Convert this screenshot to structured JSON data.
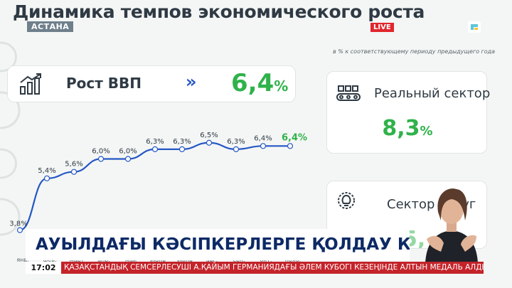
{
  "header": {
    "title": "Динамика темпов экономического роста",
    "location": "АСТАНА",
    "live": "LIVE",
    "note": "в % к соответствующему периоду предыдущего года"
  },
  "gdp": {
    "label": "Рост ВВП",
    "chevron": "»",
    "value": "6,4",
    "unit": "%"
  },
  "real_sector": {
    "label": "Реальный сектор",
    "value": "8,3",
    "unit": "%"
  },
  "services": {
    "label": "Сектор услуг",
    "value_partial": "5,"
  },
  "chart_data": {
    "type": "line",
    "categories": [
      "янв.",
      "фев.",
      "март",
      "апр.",
      "май",
      "июнь",
      "июль",
      "авг.",
      "сен.",
      "окт.",
      "нояб."
    ],
    "labels": [
      "3,8%",
      "5,4%",
      "5,6%",
      "6,0%",
      "6,0%",
      "6,3%",
      "6,3%",
      "6,5%",
      "6,3%",
      "6,4%",
      "6,4%"
    ],
    "values": [
      3.8,
      5.4,
      5.6,
      6.0,
      6.0,
      6.3,
      6.3,
      6.5,
      6.3,
      6.4,
      6.4
    ],
    "ylim": [
      3.0,
      7.0
    ],
    "color": "#2457c5",
    "highlight_color": "#2fb24a"
  },
  "lower_third": {
    "headline": "АУЫЛДАҒЫ КӘСІПКЕРЛЕРГЕ ҚОЛДАУ КҮШЕЙЕДІ",
    "time": "17:02",
    "ticker": "ҚАЗАҚСТАНДЫҚ СЕМСЕРЛЕСУШІ А.ҚАЙЫМ ГЕРМАНИЯДАҒЫ ӘЛЕМ КУБОГІ КЕЗЕҢІНДЕ АЛТЫН МЕДАЛЬ АЛДЫ"
  }
}
